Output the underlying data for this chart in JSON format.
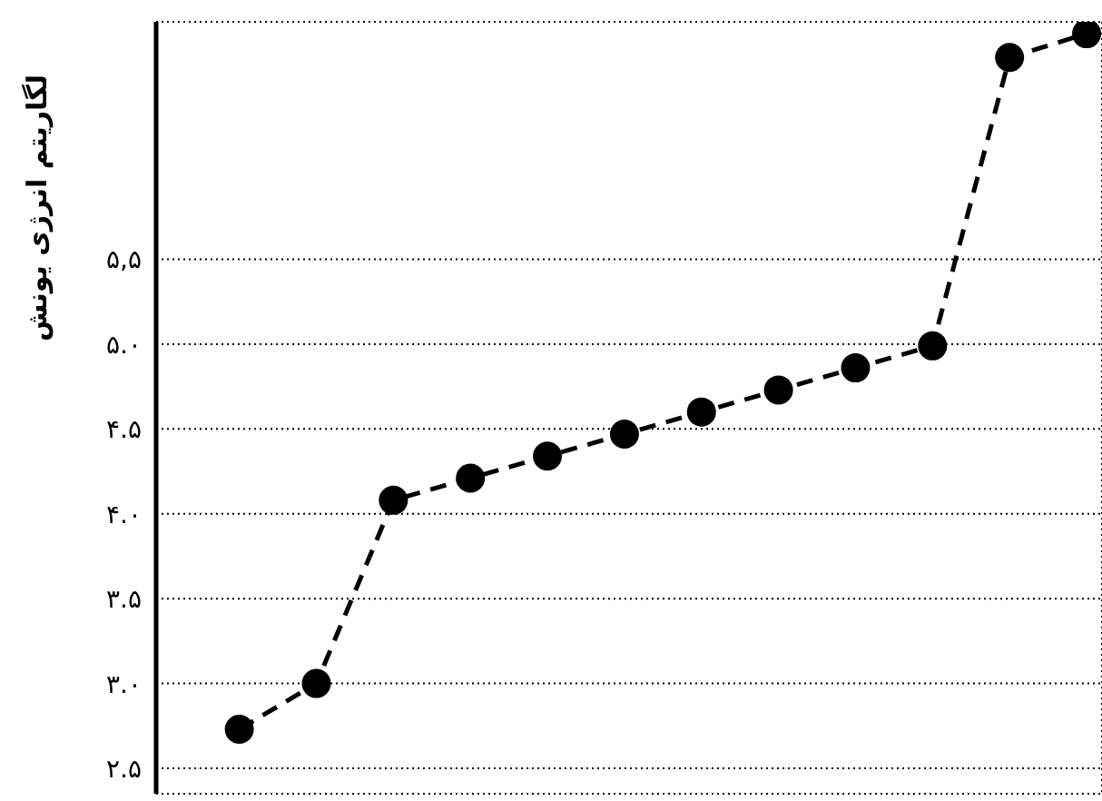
{
  "chart_data": {
    "type": "line",
    "ylabel": "لگاریتم انرژی یونش",
    "categories": [
      null,
      null,
      null,
      null,
      null,
      null,
      null,
      null,
      null,
      null,
      null,
      null
    ],
    "series": [
      {
        "color": "#000000",
        "values": [
          2.73,
          3.0,
          4.08,
          4.21,
          4.34,
          4.47,
          4.6,
          4.73,
          4.86,
          4.99,
          6.69,
          6.83
        ]
      }
    ],
    "ylim": [
      2.35,
      6.9
    ],
    "yticks": [
      {
        "value": 2.5,
        "label": "۲.۵"
      },
      {
        "value": 3.0,
        "label": "۳.۰"
      },
      {
        "value": 3.5,
        "label": "۳.۵"
      },
      {
        "value": 4.0,
        "label": "۴.۰"
      },
      {
        "value": 4.5,
        "label": "۴.۵"
      },
      {
        "value": 5.0,
        "label": "۵.۰"
      },
      {
        "value": 5.5,
        "label": "۵,۵"
      }
    ],
    "grid": true,
    "tick_labels": "y",
    "marker": "circle",
    "line_style": "dashed",
    "legend": false
  }
}
